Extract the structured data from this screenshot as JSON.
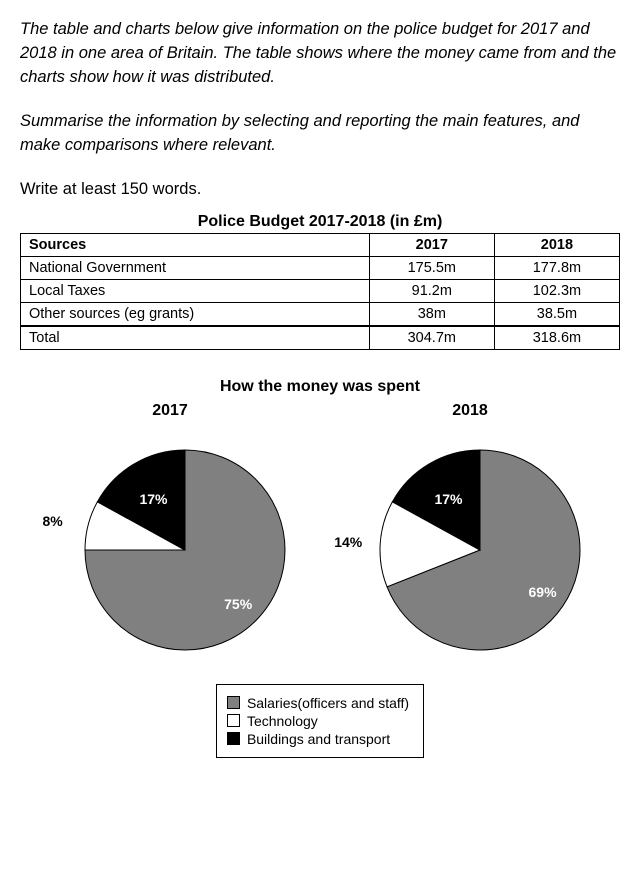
{
  "intro": {
    "para1": "The table and charts below give information on the police budget for 2017 and 2018 in one area of Britain. The table shows where the money came from and the charts show how it was distributed.",
    "para2": "Summarise the information by selecting and reporting the main features, and make comparisons where relevant."
  },
  "write_line": "Write at least 150 words.",
  "table": {
    "title": "Police Budget 2017-2018 (in £m)",
    "columns": [
      "Sources",
      "2017",
      "2018"
    ],
    "rows": [
      [
        "National Government",
        "175.5m",
        "177.8m"
      ],
      [
        "Local Taxes",
        "91.2m",
        "102.3m"
      ],
      [
        "Other sources (eg grants)",
        "38m",
        "38.5m"
      ]
    ],
    "total_row": [
      "Total",
      "304.7m",
      "318.6m"
    ]
  },
  "charts": {
    "title": "How the money was spent",
    "colors": {
      "salaries": "#808080",
      "technology": "#ffffff",
      "buildings": "#000000",
      "stroke": "#000000"
    },
    "pie_2017": {
      "year": "2017",
      "slices": [
        {
          "key": "salaries",
          "value": 75,
          "label": "75%"
        },
        {
          "key": "technology",
          "value": 8,
          "label": "8%"
        },
        {
          "key": "buildings",
          "value": 17,
          "label": "17%"
        }
      ]
    },
    "pie_2018": {
      "year": "2018",
      "slices": [
        {
          "key": "salaries",
          "value": 69,
          "label": "69%"
        },
        {
          "key": "technology",
          "value": 14,
          "label": "14%"
        },
        {
          "key": "buildings",
          "value": 17,
          "label": "17%"
        }
      ]
    },
    "legend": [
      {
        "key": "salaries",
        "label": "Salaries(officers and staff)"
      },
      {
        "key": "technology",
        "label": "Technology"
      },
      {
        "key": "buildings",
        "label": "Buildings and transport"
      }
    ]
  }
}
